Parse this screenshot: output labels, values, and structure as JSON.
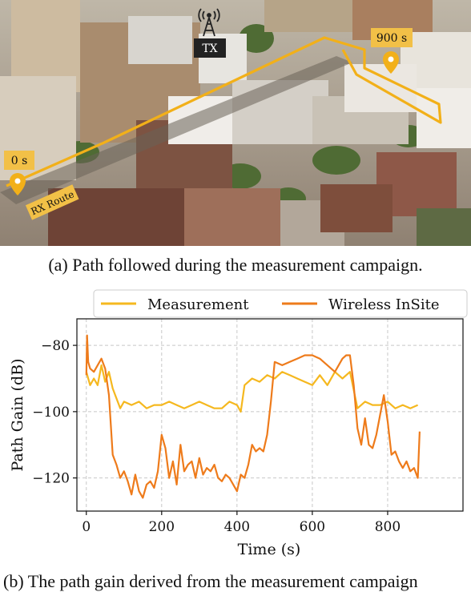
{
  "figure": {
    "photo": {
      "tx_label": "TX",
      "start_label": "0 s",
      "end_label": "900 s",
      "route_label": "RX Route",
      "colors": {
        "route": "#f2b019",
        "pin": "#f2b019",
        "tx_box": "#222222"
      }
    },
    "caption_a": "(a) Path followed during the measurement campaign.",
    "caption_b": "(b) The path gain derived from the measurement campaign"
  },
  "chart_data": {
    "type": "line",
    "xlabel": "Time (s)",
    "ylabel": "Path Gain (dB)",
    "xlim": [
      -25,
      1000
    ],
    "ylim": [
      -130,
      -72
    ],
    "xticks": [
      0,
      200,
      400,
      600,
      800
    ],
    "yticks": [
      -80,
      -100,
      -120
    ],
    "grid": true,
    "legend_position": "top-center",
    "series": [
      {
        "name": "Measurement",
        "color": "#f5b81f",
        "x": [
          0,
          10,
          20,
          30,
          40,
          50,
          60,
          70,
          80,
          90,
          100,
          120,
          140,
          160,
          180,
          200,
          220,
          240,
          260,
          280,
          300,
          320,
          340,
          360,
          380,
          400,
          410,
          420,
          440,
          460,
          480,
          500,
          520,
          540,
          560,
          580,
          600,
          620,
          640,
          660,
          680,
          700,
          720,
          740,
          760,
          780,
          800,
          820,
          840,
          860,
          880
        ],
        "y": [
          -88,
          -92,
          -90,
          -92,
          -86,
          -91,
          -88,
          -93,
          -96,
          -99,
          -97,
          -98,
          -97,
          -99,
          -98,
          -98,
          -97,
          -98,
          -99,
          -98,
          -97,
          -98,
          -99,
          -99,
          -97,
          -98,
          -100,
          -92,
          -90,
          -91,
          -89,
          -90,
          -88,
          -89,
          -90,
          -91,
          -92,
          -89,
          -92,
          -88,
          -90,
          -88,
          -99,
          -97,
          -98,
          -98,
          -97,
          -99,
          -98,
          -99,
          -98
        ]
      },
      {
        "name": "Wireless InSite",
        "color": "#ee7b1b",
        "x": [
          0,
          2,
          5,
          10,
          20,
          30,
          40,
          50,
          60,
          70,
          80,
          90,
          100,
          110,
          120,
          130,
          140,
          150,
          160,
          170,
          180,
          190,
          200,
          210,
          220,
          230,
          240,
          250,
          260,
          270,
          280,
          290,
          300,
          310,
          320,
          330,
          340,
          350,
          360,
          370,
          380,
          390,
          400,
          410,
          420,
          430,
          440,
          450,
          460,
          470,
          480,
          490,
          500,
          520,
          540,
          560,
          580,
          600,
          620,
          640,
          660,
          680,
          690,
          700,
          710,
          720,
          730,
          740,
          750,
          760,
          770,
          780,
          790,
          800,
          810,
          820,
          830,
          840,
          850,
          860,
          870,
          880,
          885
        ],
        "y": [
          -89,
          -77,
          -85,
          -87,
          -88,
          -86,
          -84,
          -87,
          -95,
          -113,
          -116,
          -120,
          -118,
          -121,
          -125,
          -119,
          -124,
          -126,
          -122,
          -121,
          -123,
          -118,
          -107,
          -111,
          -120,
          -115,
          -122,
          -110,
          -118,
          -116,
          -115,
          -120,
          -114,
          -119,
          -117,
          -118,
          -116,
          -120,
          -121,
          -119,
          -120,
          -122,
          -124,
          -119,
          -120,
          -116,
          -110,
          -112,
          -111,
          -112,
          -107,
          -97,
          -85,
          -86,
          -85,
          -84,
          -83,
          -83,
          -84,
          -86,
          -88,
          -84,
          -83,
          -83,
          -92,
          -105,
          -110,
          -102,
          -110,
          -111,
          -107,
          -101,
          -95,
          -103,
          -113,
          -112,
          -115,
          -117,
          -115,
          -118,
          -117,
          -120,
          -106
        ]
      }
    ]
  }
}
